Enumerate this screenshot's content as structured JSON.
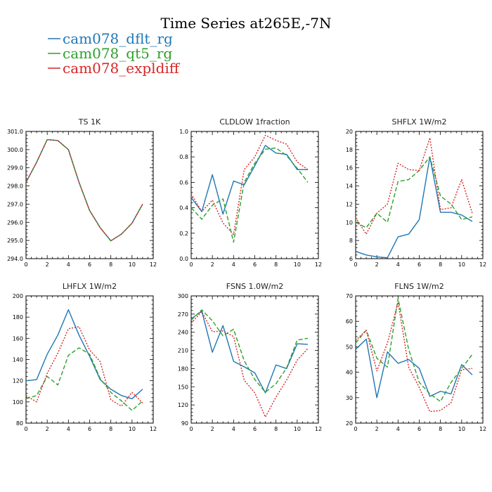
{
  "figure": {
    "title": "Time Series at265E,-7N",
    "legend": [
      {
        "name": "cam078_dflt_rg",
        "color": "#1f77b4",
        "dash": "solid"
      },
      {
        "name": "cam078_qt5_rg",
        "color": "#2ca02c",
        "dash": "dashed"
      },
      {
        "name": "cam078_expldiff",
        "color": "#d62728",
        "dash": "dotted"
      }
    ]
  },
  "chart_data": [
    {
      "type": "line",
      "title": "TS   1K",
      "x": [
        0,
        1,
        2,
        3,
        4,
        5,
        6,
        7,
        8,
        9,
        10,
        11
      ],
      "xlim": [
        0,
        12
      ],
      "xticks": [
        0,
        2,
        4,
        6,
        8,
        10,
        12
      ],
      "ylim": [
        294.0,
        301.0
      ],
      "yticks": [
        294.0,
        295.0,
        296.0,
        297.0,
        298.0,
        299.0,
        300.0,
        301.0
      ],
      "ytick_labels": [
        "294.0",
        "295.0",
        "296.0",
        "297.0",
        "298.0",
        "299.0",
        "300.0",
        "301.0"
      ],
      "series": [
        {
          "name": "cam078_dflt_rg",
          "values": [
            298.2,
            299.3,
            300.55,
            300.5,
            300.0,
            298.2,
            296.65,
            295.7,
            294.98,
            295.35,
            295.95,
            297.0
          ]
        },
        {
          "name": "cam078_qt5_rg",
          "values": [
            298.2,
            299.3,
            300.55,
            300.5,
            300.0,
            298.2,
            296.65,
            295.7,
            294.98,
            295.35,
            295.95,
            297.0
          ]
        },
        {
          "name": "cam078_expldiff",
          "values": [
            298.2,
            299.3,
            300.55,
            300.5,
            300.0,
            298.2,
            296.65,
            295.7,
            294.98,
            295.35,
            295.95,
            297.0
          ]
        }
      ]
    },
    {
      "type": "line",
      "title": "CLDLOW   1fraction",
      "x": [
        0,
        1,
        2,
        3,
        4,
        5,
        6,
        7,
        8,
        9,
        10,
        11
      ],
      "xlim": [
        0,
        12
      ],
      "xticks": [
        0,
        2,
        4,
        6,
        8,
        10,
        12
      ],
      "ylim": [
        0.0,
        1.0
      ],
      "yticks": [
        0.0,
        0.2,
        0.4,
        0.6,
        0.8,
        1.0
      ],
      "ytick_labels": [
        "0.0",
        "0.2",
        "0.4",
        "0.6",
        "0.8",
        "1.0"
      ],
      "series": [
        {
          "name": "cam078_dflt_rg",
          "values": [
            0.48,
            0.37,
            0.66,
            0.35,
            0.61,
            0.58,
            0.73,
            0.89,
            0.83,
            0.82,
            0.7,
            0.7
          ]
        },
        {
          "name": "cam078_qt5_rg",
          "values": [
            0.4,
            0.31,
            0.42,
            0.47,
            0.13,
            0.6,
            0.75,
            0.86,
            0.87,
            0.81,
            0.71,
            0.6
          ]
        },
        {
          "name": "cam078_expldiff",
          "values": [
            0.51,
            0.37,
            0.46,
            0.28,
            0.19,
            0.7,
            0.8,
            0.97,
            0.93,
            0.9,
            0.76,
            0.7
          ]
        }
      ]
    },
    {
      "type": "line",
      "title": "SHFLX   1W/m2",
      "x": [
        0,
        1,
        2,
        3,
        4,
        5,
        6,
        7,
        8,
        9,
        10,
        11
      ],
      "xlim": [
        0,
        12
      ],
      "xticks": [
        0,
        2,
        4,
        6,
        8,
        10,
        12
      ],
      "ylim": [
        6,
        20
      ],
      "yticks": [
        6,
        8,
        10,
        12,
        14,
        16,
        18,
        20
      ],
      "ytick_labels": [
        "6",
        "8",
        "10",
        "12",
        "14",
        "16",
        "18",
        "20"
      ],
      "series": [
        {
          "name": "cam078_dflt_rg",
          "values": [
            6.8,
            6.4,
            6.2,
            6.1,
            8.4,
            8.7,
            10.3,
            17.2,
            11.1,
            11.1,
            10.8,
            10.1
          ]
        },
        {
          "name": "cam078_qt5_rg",
          "values": [
            10.0,
            9.4,
            11.0,
            10.0,
            14.5,
            14.7,
            15.7,
            17.2,
            12.9,
            12.0,
            10.3,
            10.6
          ]
        },
        {
          "name": "cam078_expldiff",
          "values": [
            10.5,
            8.7,
            11.0,
            12.0,
            16.5,
            15.8,
            15.7,
            19.3,
            11.4,
            11.6,
            14.7,
            11.0
          ]
        }
      ]
    },
    {
      "type": "line",
      "title": "LHFLX   1W/m2",
      "x": [
        0,
        1,
        2,
        3,
        4,
        5,
        6,
        7,
        8,
        9,
        10,
        11
      ],
      "xlim": [
        0,
        12
      ],
      "xticks": [
        0,
        2,
        4,
        6,
        8,
        10,
        12
      ],
      "ylim": [
        80,
        200
      ],
      "yticks": [
        80,
        100,
        120,
        140,
        160,
        180,
        200
      ],
      "ytick_labels": [
        "80",
        "100",
        "120",
        "140",
        "160",
        "180",
        "200"
      ],
      "series": [
        {
          "name": "cam078_dflt_rg",
          "values": [
            120,
            121,
            145,
            163,
            187,
            163,
            143,
            121,
            112,
            106,
            103,
            112
          ]
        },
        {
          "name": "cam078_qt5_rg",
          "values": [
            103,
            106,
            124,
            116,
            144,
            151,
            145,
            122,
            109,
            101,
            92,
            101
          ]
        },
        {
          "name": "cam078_expldiff",
          "values": [
            106,
            100,
            127,
            146,
            169,
            171,
            149,
            138,
            102,
            96,
            109,
            99
          ]
        }
      ]
    },
    {
      "type": "line",
      "title": "FSNS   1.0W/m2",
      "x": [
        0,
        1,
        2,
        3,
        4,
        5,
        6,
        7,
        8,
        9,
        10,
        11
      ],
      "xlim": [
        0,
        12
      ],
      "xticks": [
        0,
        2,
        4,
        6,
        8,
        10,
        12
      ],
      "ylim": [
        90,
        300
      ],
      "yticks": [
        90,
        120,
        150,
        180,
        210,
        240,
        270,
        300
      ],
      "ytick_labels": [
        "90",
        "120",
        "150",
        "180",
        "210",
        "240",
        "270",
        "300"
      ],
      "series": [
        {
          "name": "cam078_dflt_rg",
          "values": [
            262,
            275,
            207,
            251,
            192,
            183,
            173,
            140,
            186,
            180,
            221,
            220
          ]
        },
        {
          "name": "cam078_qt5_rg",
          "values": [
            260,
            277,
            259,
            234,
            245,
            193,
            162,
            141,
            155,
            181,
            227,
            230
          ]
        },
        {
          "name": "cam078_expldiff",
          "values": [
            255,
            274,
            241,
            242,
            233,
            161,
            140,
            100,
            133,
            161,
            194,
            213
          ]
        }
      ]
    },
    {
      "type": "line",
      "title": "FLNS   1W/m2",
      "x": [
        0,
        1,
        2,
        3,
        4,
        5,
        6,
        7,
        8,
        9,
        10,
        11
      ],
      "xlim": [
        0,
        12
      ],
      "xticks": [
        0,
        2,
        4,
        6,
        8,
        10,
        12
      ],
      "ylim": [
        20,
        70
      ],
      "yticks": [
        20,
        30,
        40,
        50,
        60,
        70
      ],
      "ytick_labels": [
        "20",
        "30",
        "40",
        "50",
        "60",
        "70"
      ],
      "series": [
        {
          "name": "cam078_dflt_rg",
          "values": [
            49,
            53,
            30,
            48,
            43.5,
            45,
            41.5,
            30.5,
            32.5,
            31.5,
            43,
            39
          ]
        },
        {
          "name": "cam078_qt5_rg",
          "values": [
            51.5,
            56.5,
            45.5,
            42,
            69,
            49,
            36,
            31.5,
            28.5,
            36,
            41.5,
            47
          ]
        },
        {
          "name": "cam078_expldiff",
          "values": [
            52.5,
            56.5,
            40.5,
            51.5,
            67.5,
            42,
            34,
            24.5,
            25,
            28,
            41,
            41.5
          ]
        }
      ]
    }
  ]
}
